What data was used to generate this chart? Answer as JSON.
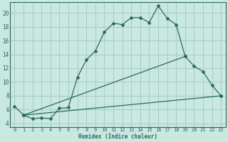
{
  "xlabel": "Humidex (Indice chaleur)",
  "bg_color": "#c8e8e0",
  "grid_color": "#a8ccc4",
  "line_color": "#2a6b60",
  "xlim": [
    -0.5,
    23.5
  ],
  "ylim": [
    3.5,
    21.5
  ],
  "xticks": [
    0,
    1,
    2,
    3,
    4,
    5,
    6,
    7,
    8,
    9,
    10,
    11,
    12,
    13,
    14,
    15,
    16,
    17,
    18,
    19,
    20,
    21,
    22,
    23
  ],
  "yticks": [
    4,
    6,
    8,
    10,
    12,
    14,
    16,
    18,
    20
  ],
  "line1_x": [
    0,
    1,
    2,
    3,
    4,
    5,
    6,
    7,
    8,
    9,
    10,
    11,
    12,
    13,
    14,
    15,
    16,
    17,
    18,
    19,
    20,
    21,
    22,
    23
  ],
  "line1_y": [
    6.5,
    5.2,
    4.7,
    4.8,
    4.7,
    6.2,
    6.3,
    10.7,
    13.2,
    14.5,
    17.2,
    18.5,
    18.3,
    19.3,
    19.3,
    18.6,
    21.0,
    19.2,
    18.3,
    13.7,
    12.3,
    11.5,
    9.5,
    8.0
  ],
  "line2_x": [
    1,
    23
  ],
  "line2_y": [
    5.2,
    8.0
  ],
  "line3_x": [
    1,
    19
  ],
  "line3_y": [
    5.2,
    13.7
  ]
}
